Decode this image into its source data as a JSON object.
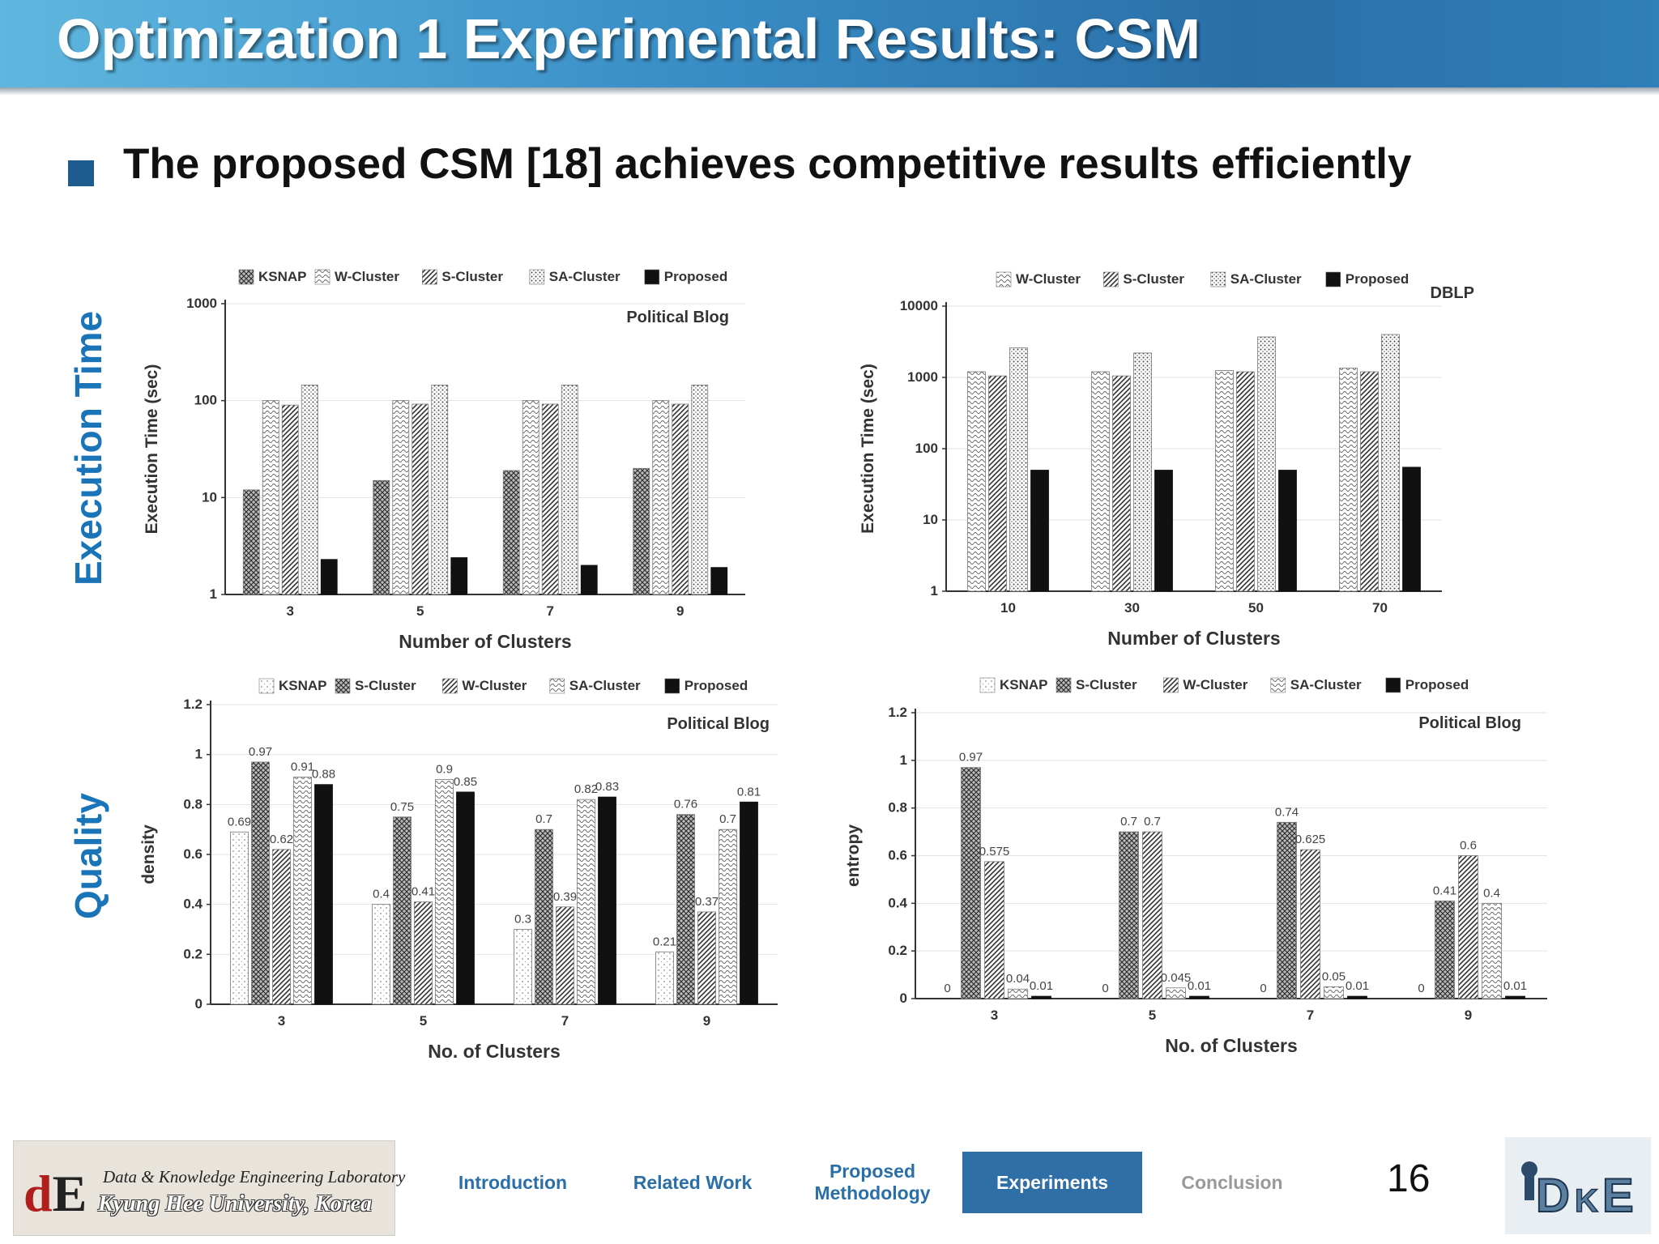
{
  "slide": {
    "title": "Optimization 1 Experimental Results: CSM",
    "bullet": "The proposed CSM [18] achieves competitive results efficiently",
    "row_labels": [
      "Execution Time",
      "Quality"
    ],
    "page_number": "16"
  },
  "footer": {
    "lab_line1": "Data & Knowledge Engineering Laboratory",
    "lab_line2": "Kyung Hee University, Korea",
    "logo_letters": "dE",
    "dke_logo": "DKE",
    "nav": [
      {
        "label": "Introduction",
        "state": "normal"
      },
      {
        "label": "Related Work",
        "state": "normal"
      },
      {
        "label": "Proposed Methodology",
        "state": "normal"
      },
      {
        "label": "Experiments",
        "state": "active"
      },
      {
        "label": "Conclusion",
        "state": "dim"
      }
    ]
  },
  "chart_data": [
    {
      "type": "bar",
      "log_scale": true,
      "annotation": "Political Blog",
      "xlabel": "Number of Clusters",
      "ylabel": "Execution Time (sec)",
      "ylim": [
        1,
        1000
      ],
      "yticks": [
        "1",
        "10",
        "100",
        "1000"
      ],
      "categories": [
        "3",
        "5",
        "7",
        "9"
      ],
      "legend_position": "top",
      "series": [
        {
          "name": "KSNAP",
          "values": [
            12,
            15,
            19,
            20
          ],
          "pattern": "crosshatch"
        },
        {
          "name": "W-Cluster",
          "values": [
            100,
            100,
            100,
            100
          ],
          "pattern": "wave"
        },
        {
          "name": "S-Cluster",
          "values": [
            90,
            92,
            92,
            92
          ],
          "pattern": "diag"
        },
        {
          "name": "SA-Cluster",
          "values": [
            145,
            145,
            145,
            145
          ],
          "pattern": "dots"
        },
        {
          "name": "Proposed",
          "values": [
            2.3,
            2.4,
            2.0,
            1.9
          ],
          "pattern": "solid"
        }
      ]
    },
    {
      "type": "bar",
      "log_scale": true,
      "annotation": "DBLP",
      "xlabel": "Number of Clusters",
      "ylabel": "Execution Time (sec)",
      "ylim": [
        1,
        10000
      ],
      "yticks": [
        "1",
        "10",
        "100",
        "1000",
        "10000"
      ],
      "categories": [
        "10",
        "30",
        "50",
        "70"
      ],
      "legend_position": "top",
      "series": [
        {
          "name": "W-Cluster",
          "values": [
            1200,
            1200,
            1250,
            1350
          ],
          "pattern": "wave"
        },
        {
          "name": "S-Cluster",
          "values": [
            1050,
            1050,
            1200,
            1200
          ],
          "pattern": "diag"
        },
        {
          "name": "SA-Cluster",
          "values": [
            2600,
            2200,
            3700,
            4000
          ],
          "pattern": "dots"
        },
        {
          "name": "Proposed",
          "values": [
            50,
            50,
            50,
            55
          ],
          "pattern": "solid"
        }
      ]
    },
    {
      "type": "bar",
      "log_scale": false,
      "annotation": "Political Blog",
      "xlabel": "No. of Clusters",
      "ylabel": "density",
      "ylim": [
        0,
        1.2
      ],
      "yticks": [
        "0",
        "0.2",
        "0.4",
        "0.6",
        "0.8",
        "1",
        "1.2"
      ],
      "categories": [
        "3",
        "5",
        "7",
        "9"
      ],
      "legend_position": "top",
      "series": [
        {
          "name": "KSNAP",
          "values": [
            0.69,
            0.4,
            0.3,
            0.21
          ],
          "labels": [
            "0.69",
            "0.4",
            "0.3",
            "0.21"
          ],
          "pattern": "lightdots"
        },
        {
          "name": "S-Cluster",
          "values": [
            0.97,
            0.75,
            0.7,
            0.76
          ],
          "labels": [
            "0.97",
            "0.75",
            "0.7",
            "0.76"
          ],
          "pattern": "crosshatch"
        },
        {
          "name": "W-Cluster",
          "values": [
            0.62,
            0.41,
            0.39,
            0.37
          ],
          "labels": [
            "0.62",
            "0.41",
            "0.39",
            "0.37"
          ],
          "pattern": "diag"
        },
        {
          "name": "SA-Cluster",
          "values": [
            0.91,
            0.9,
            0.82,
            0.7
          ],
          "labels": [
            "0.91",
            "0.9",
            "0.82",
            "0.7"
          ],
          "pattern": "wave"
        },
        {
          "name": "Proposed",
          "values": [
            0.88,
            0.85,
            0.83,
            0.81
          ],
          "labels": [
            "0.88",
            "0.85",
            "0.83",
            "0.81"
          ],
          "pattern": "solid"
        }
      ]
    },
    {
      "type": "bar",
      "log_scale": false,
      "annotation": "Political Blog",
      "xlabel": "No. of Clusters",
      "ylabel": "entropy",
      "ylim": [
        0,
        1.2
      ],
      "yticks": [
        "0",
        "0.2",
        "0.4",
        "0.6",
        "0.8",
        "1",
        "1.2"
      ],
      "categories": [
        "3",
        "5",
        "7",
        "9"
      ],
      "legend_position": "top",
      "series": [
        {
          "name": "KSNAP",
          "values": [
            0,
            0,
            0,
            0
          ],
          "labels": [
            "0",
            "0",
            "0",
            "0"
          ],
          "pattern": "lightdots"
        },
        {
          "name": "S-Cluster",
          "values": [
            0.97,
            0.7,
            0.74,
            0.41
          ],
          "labels": [
            "0.97",
            "0.7",
            "0.74",
            "0.41"
          ],
          "pattern": "crosshatch"
        },
        {
          "name": "W-Cluster",
          "values": [
            0.575,
            0.7,
            0.625,
            0.6
          ],
          "labels": [
            "0.575",
            "0.7",
            "0.625",
            "0.6"
          ],
          "pattern": "diag"
        },
        {
          "name": "SA-Cluster",
          "values": [
            0.04,
            0.045,
            0.05,
            0.4
          ],
          "labels": [
            "0.04",
            "0.045",
            "0.05",
            "0.4"
          ],
          "pattern": "wave"
        },
        {
          "name": "Proposed",
          "values": [
            0.01,
            0.01,
            0.01,
            0.01
          ],
          "labels": [
            "0.01",
            "0.01",
            "0.01",
            "0.01"
          ],
          "pattern": "solid"
        }
      ]
    }
  ]
}
